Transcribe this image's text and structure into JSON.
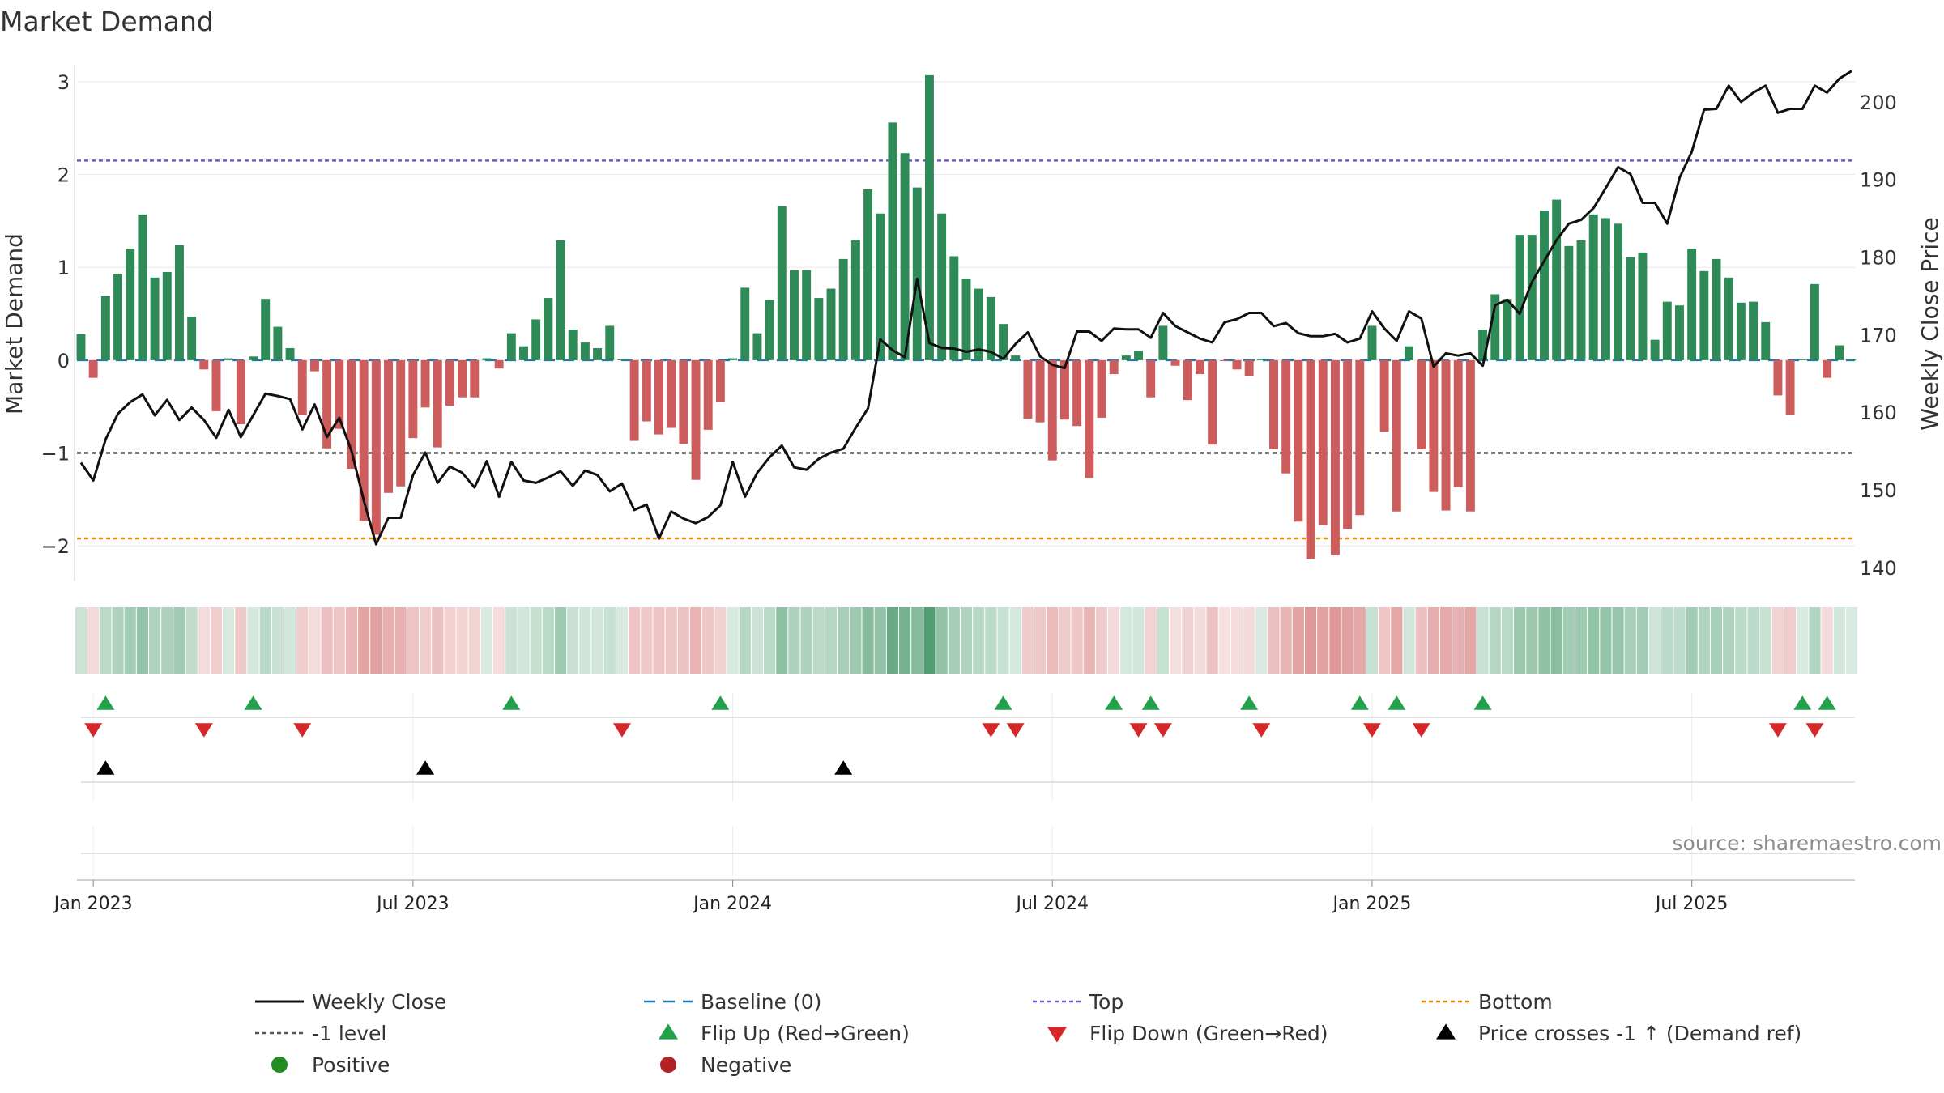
{
  "chart_data": {
    "type": "bar",
    "title": "Market Demand",
    "ylabel_left": "Market Demand",
    "ylabel_right": "Weekly Close Price",
    "ylim_left": [
      -2.4,
      3.2
    ],
    "ylim_right": [
      138,
      205
    ],
    "left_ticks": [
      "3",
      "2",
      "1",
      "0",
      "−1",
      "−2"
    ],
    "right_ticks": [
      "200",
      "190",
      "180",
      "170",
      "160",
      "150",
      "140"
    ],
    "x_tick_labels": [
      "Jan 2023",
      "Jul 2023",
      "Jan 2024",
      "Jul 2024",
      "Jan 2025",
      "Jul 2025"
    ],
    "x_tick_weeks": [
      1,
      27,
      53,
      79,
      105,
      131
    ],
    "n_weeks": 145,
    "reference_lines": {
      "top": 2.15,
      "minus_one": -1.0,
      "bottom": -1.92,
      "baseline": 0
    },
    "demand": [
      0.28,
      -0.19,
      0.69,
      0.93,
      1.2,
      1.57,
      0.89,
      0.95,
      1.24,
      0.47,
      -0.1,
      -0.55,
      0.02,
      -0.69,
      0.04,
      0.66,
      0.36,
      0.13,
      -0.59,
      -0.12,
      -0.95,
      -0.74,
      -1.17,
      -1.73,
      -1.88,
      -1.43,
      -1.36,
      -0.84,
      -0.51,
      -0.94,
      -0.49,
      -0.4,
      -0.4,
      0.02,
      -0.09,
      0.29,
      0.15,
      0.44,
      0.67,
      1.29,
      0.33,
      0.19,
      0.13,
      0.37,
      0.01,
      -0.87,
      -0.66,
      -0.8,
      -0.73,
      -0.9,
      -1.29,
      -0.75,
      -0.45,
      0.02,
      0.78,
      0.29,
      0.65,
      1.66,
      0.97,
      0.97,
      0.67,
      0.77,
      1.09,
      1.29,
      1.84,
      1.58,
      2.56,
      2.23,
      1.86,
      3.07,
      1.58,
      1.12,
      0.88,
      0.77,
      0.68,
      0.39,
      0.05,
      -0.63,
      -0.67,
      -1.08,
      -0.64,
      -0.71,
      -1.27,
      -0.62,
      -0.15,
      0.05,
      0.1,
      -0.4,
      0.37,
      -0.06,
      -0.43,
      -0.15,
      -0.91,
      -0.01,
      -0.1,
      -0.17,
      0.01,
      -0.96,
      -1.22,
      -1.74,
      -2.14,
      -1.78,
      -2.1,
      -1.82,
      -1.67,
      0.37,
      -0.77,
      -1.63,
      0.15,
      -0.96,
      -1.42,
      -1.62,
      -1.37,
      -1.63,
      0.33,
      0.71,
      0.66,
      1.35,
      1.35,
      1.61,
      1.73,
      1.23,
      1.29,
      1.57,
      1.53,
      1.47,
      1.11,
      1.16,
      0.22,
      0.63,
      0.59,
      1.2,
      0.96,
      1.09,
      0.89,
      0.62,
      0.63,
      0.41,
      -0.38,
      -0.59,
      0.01,
      0.82,
      -0.19,
      0.16,
      0.01
    ],
    "weekly_close": [
      153.5,
      151.2,
      156.5,
      159.8,
      161.3,
      162.3,
      159.6,
      161.6,
      159.0,
      160.6,
      159.0,
      156.7,
      160.3,
      156.8,
      159.6,
      162.4,
      162.1,
      161.7,
      157.8,
      161.0,
      156.8,
      159.3,
      155.0,
      148.6,
      143.0,
      146.4,
      146.4,
      151.9,
      154.8,
      150.9,
      153.0,
      152.2,
      150.3,
      153.7,
      149.1,
      153.6,
      151.2,
      150.9,
      151.6,
      152.4,
      150.5,
      152.5,
      151.9,
      149.8,
      150.8,
      147.4,
      148.1,
      143.7,
      147.2,
      146.3,
      145.7,
      146.5,
      148.0,
      153.6,
      149.1,
      152.2,
      154.2,
      155.7,
      152.9,
      152.6,
      154.0,
      154.8,
      155.3,
      158.0,
      160.5,
      169.4,
      168.0,
      167.1,
      177.2,
      168.9,
      168.3,
      168.2,
      167.8,
      168.1,
      167.8,
      166.9,
      168.8,
      170.3,
      167.2,
      166.1,
      165.7,
      170.4,
      170.4,
      169.2,
      170.8,
      170.7,
      170.7,
      169.6,
      172.8,
      171.1,
      170.3,
      169.5,
      169.0,
      171.6,
      172.0,
      172.8,
      172.8,
      171.1,
      171.5,
      170.2,
      169.8,
      169.8,
      170.1,
      169.0,
      169.5,
      173.0,
      170.8,
      169.2,
      173.0,
      172.1,
      165.9,
      167.6,
      167.3,
      167.6,
      166.0,
      173.8,
      174.5,
      172.7,
      176.8,
      179.5,
      182.2,
      184.3,
      184.8,
      186.3,
      188.9,
      191.6,
      190.7,
      187.0,
      187.0,
      184.3,
      190.2,
      193.6,
      199.0,
      199.1,
      202.1,
      200.0,
      201.2,
      202.1,
      198.6,
      199.1,
      199.1,
      202.1,
      201.2,
      203.0,
      204.0
    ],
    "flip_up_weeks": [
      2,
      14,
      35,
      52,
      75,
      84,
      87,
      95,
      104,
      107,
      114,
      140,
      142
    ],
    "flip_down_weeks": [
      1,
      10,
      18,
      44,
      74,
      76,
      86,
      88,
      96,
      105,
      109,
      138,
      141
    ],
    "price_cross_weeks": [
      2,
      28,
      62
    ],
    "source_text": "source: sharemaestro.com",
    "legend": [
      "Weekly Close",
      "Baseline (0)",
      "Top",
      "Bottom",
      "-1 level",
      "Flip Up (Red→Green)",
      "Flip Down (Green→Red)",
      "Price crosses -1 ↑ (Demand ref)",
      "Positive",
      "Negative"
    ],
    "colors": {
      "positive": "#2e8b57",
      "negative": "#cd5c5c",
      "close": "#111111",
      "baseline": "#1f77b4",
      "top": "#6a5acd",
      "minus_one": "#555555",
      "bottom": "#e08a00",
      "flip_up": "#22a04a",
      "flip_down": "#d62728",
      "cross": "#000000",
      "legend_positive": "#228b22",
      "legend_negative": "#b22222"
    }
  }
}
